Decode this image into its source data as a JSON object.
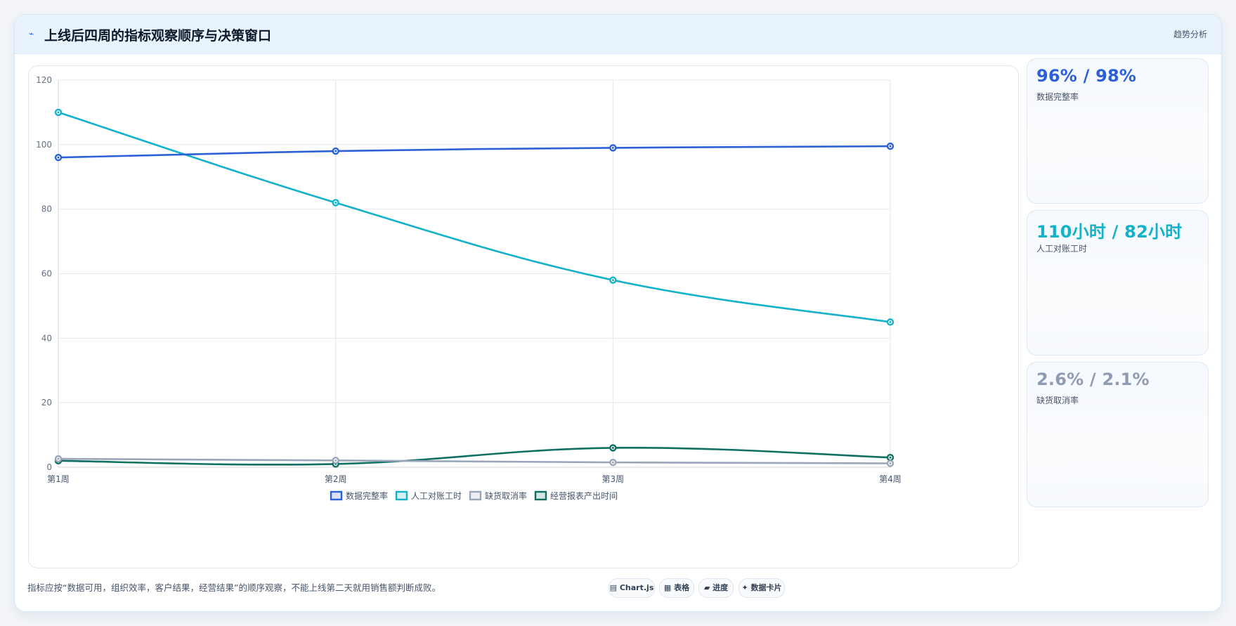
{
  "header": {
    "icon": "trend-line-icon",
    "icon_glyph": "⌁",
    "title": "上线后四周的指标观察顺序与决策窗口",
    "link_label": "趋势分析"
  },
  "chart_data": {
    "type": "line",
    "categories": [
      "第1周",
      "第2周",
      "第3周",
      "第4周"
    ],
    "ylim": [
      0,
      120
    ],
    "yticks": [
      0,
      20,
      40,
      60,
      80,
      100,
      120
    ],
    "grid": true,
    "legend_position": "bottom",
    "series": [
      {
        "name": "数据完整率",
        "color": "#2b60d6",
        "values": [
          96,
          98,
          99,
          99.5
        ]
      },
      {
        "name": "人工对账工时",
        "color": "#13b2c8",
        "values": [
          110,
          82,
          58,
          45
        ]
      },
      {
        "name": "缺货取消率",
        "color": "#9aa6b8",
        "values": [
          2.6,
          2.1,
          1.5,
          1.2
        ]
      },
      {
        "name": "经营报表产出时间",
        "color": "#0f7062",
        "values": [
          2,
          1,
          6,
          3
        ]
      }
    ]
  },
  "kpis": [
    {
      "value": "96% / 98%",
      "label": "数据完整率",
      "color": "#2b60d6"
    },
    {
      "value": "110小时 / 82小时",
      "label": "人工对账工时",
      "color": "#13b2c8"
    },
    {
      "value": "2.6% / 2.1%",
      "label": "缺货取消率",
      "color": "#8e9bb1"
    }
  ],
  "footnote": "指标应按“数据可用，组织效率，客户结果，经营结果”的顺序观察，不能上线第二天就用销售额判断成败。",
  "tags": [
    {
      "icon": "chart-icon",
      "glyph": "▤",
      "label": "Chart.js"
    },
    {
      "icon": "table-icon",
      "glyph": "▦",
      "label": "表格"
    },
    {
      "icon": "progress-icon",
      "glyph": "▰",
      "label": "进度"
    },
    {
      "icon": "sparkle-icon",
      "glyph": "✦",
      "label": "数据卡片"
    }
  ]
}
